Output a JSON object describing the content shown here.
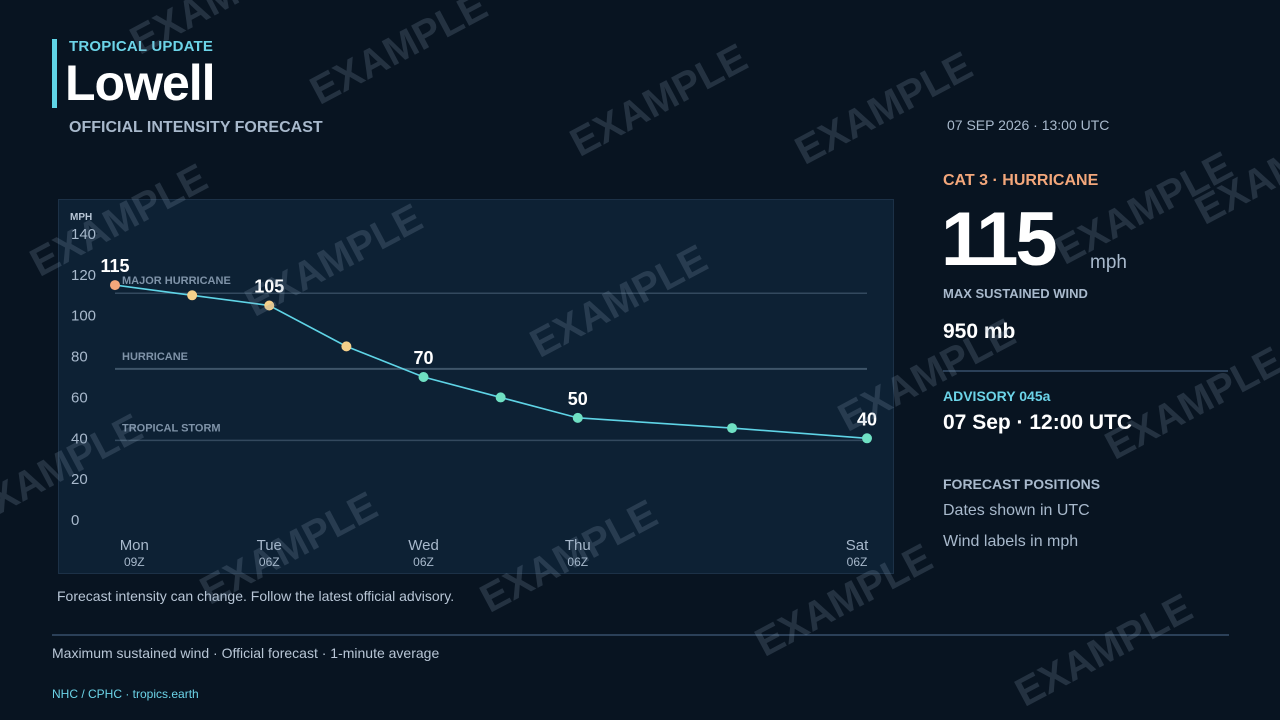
{
  "header": {
    "eyebrow": "TROPICAL UPDATE",
    "storm_name": "Lowell",
    "subtitle": "OFFICIAL INTENSITY FORECAST"
  },
  "chart_note": "Forecast intensity can change. Follow the latest official advisory.",
  "sidebar": {
    "timestamp": "07 SEP 2026 · 13:00 UTC",
    "category": "CAT 3 · HURRICANE",
    "max_wind_value": "115",
    "max_wind_unit": "mph",
    "max_wind_label": "MAX SUSTAINED WIND",
    "pressure": "950 mb",
    "advisory_label": "ADVISORY 045a",
    "advisory_time": "07 Sep · 12:00 UTC",
    "forecast_positions_label": "FORECAST POSITIONS",
    "forecast_note_1": "Dates shown in UTC",
    "forecast_note_2": "Wind labels in mph"
  },
  "footer": {
    "text": "Maximum sustained wind · Official forecast · 1-minute average",
    "source": "NHC / CPHC · tropics.earth"
  },
  "watermark": "EXAMPLE",
  "colors": {
    "background": "#081421",
    "panel": "#0d2134",
    "line": "#5fd4e6",
    "major_hurricane_point": "#f3a77b",
    "hurricane_point": "#f5d08a",
    "storm_point": "#6fe0c3",
    "accent": "#6cd4e8",
    "category_text": "#f3a77b"
  },
  "chart_data": {
    "type": "line",
    "ylabel": "MPH",
    "ylim": [
      0,
      140
    ],
    "yticks": [
      0,
      20,
      40,
      60,
      80,
      100,
      120,
      140
    ],
    "xlim": [
      0,
      117
    ],
    "xticks": [
      {
        "x": 3,
        "day": "Mon",
        "time": "09Z"
      },
      {
        "x": 24,
        "day": "Tue",
        "time": "06Z"
      },
      {
        "x": 48,
        "day": "Wed",
        "time": "06Z"
      },
      {
        "x": 72,
        "day": "Thu",
        "time": "06Z"
      },
      {
        "x": 120,
        "day": "Sat",
        "time": "06Z"
      }
    ],
    "thresholds": [
      {
        "label": "MAJOR HURRICANE",
        "value": 111
      },
      {
        "label": "HURRICANE",
        "value": 74
      },
      {
        "label": "TROPICAL STORM",
        "value": 39
      }
    ],
    "series": [
      {
        "points": [
          {
            "x": 0,
            "y": 115,
            "label": "115"
          },
          {
            "x": 12,
            "y": 110
          },
          {
            "x": 24,
            "y": 105,
            "label": "105"
          },
          {
            "x": 36,
            "y": 85
          },
          {
            "x": 48,
            "y": 70,
            "label": "70"
          },
          {
            "x": 60,
            "y": 60
          },
          {
            "x": 72,
            "y": 50,
            "label": "50"
          },
          {
            "x": 96,
            "y": 45
          },
          {
            "x": 117,
            "y": 40,
            "label": "40"
          }
        ]
      }
    ],
    "grid": false,
    "legend": "none"
  }
}
